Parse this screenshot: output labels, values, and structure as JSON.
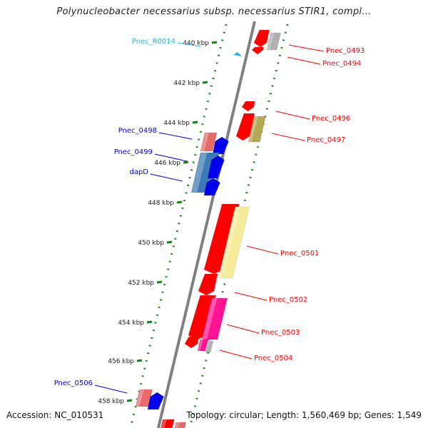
{
  "title": "Polynucleobacter necessarius subsp. necessarius STIR1, compl...",
  "accession": "Accession: NC_010531",
  "summary": "Topology: circular; Length: 1,560,469 bp; Genes: 1,549",
  "colors": {
    "backbone": "#808080",
    "dots": "#228B22",
    "ticks": "#1f7a1f",
    "red": "#ff0000",
    "gray": "#b0b0b0",
    "khaki": "#b5a855",
    "yellow": "#f4ec9b",
    "pink": "#f07070",
    "blue": "#0000ee",
    "steelblue": "#3d7ab8",
    "magenta": "#ff1493",
    "cyan": "#22b5d8"
  },
  "kbp_ticks": [
    "440 kbp",
    "442 kbp",
    "444 kbp",
    "446 kbp",
    "448 kbp",
    "450 kbp",
    "452 kbp",
    "454 kbp",
    "456 kbp",
    "458 kbp"
  ],
  "gene_labels": [
    {
      "name": "Pnec_R0014",
      "color": "cyan"
    },
    {
      "name": "Pnec_0493",
      "color": "red"
    },
    {
      "name": "Pnec_0494",
      "color": "red"
    },
    {
      "name": "Pnec_0496",
      "color": "red"
    },
    {
      "name": "Pnec_0497",
      "color": "red"
    },
    {
      "name": "Pnec_0498",
      "color": "blue"
    },
    {
      "name": "Pnec_0499",
      "color": "blue"
    },
    {
      "name": "dapD",
      "color": "blue"
    },
    {
      "name": "Pnec_0501",
      "color": "red"
    },
    {
      "name": "Pnec_0502",
      "color": "red"
    },
    {
      "name": "Pnec_0503",
      "color": "red"
    },
    {
      "name": "Pnec_0504",
      "color": "red"
    },
    {
      "name": "Pnec_0506",
      "color": "blue"
    }
  ]
}
